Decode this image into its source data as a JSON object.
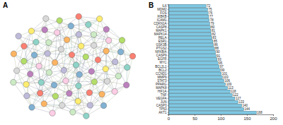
{
  "panel_labels": [
    "A",
    "B"
  ],
  "chart_data": {
    "type": "bar",
    "orientation": "horizontal",
    "data_labels": true,
    "grid": false,
    "color": "#7ec8e3",
    "categories": [
      "IL6",
      "MDM2",
      "FOS",
      "IKBKB",
      "ICAM1",
      "CDKN1A",
      "CASP8",
      "MAPK1",
      "MAPK14",
      "RELA",
      "ESR1",
      "GSK3B",
      "PTGS2",
      "NFKBIA",
      "CASP9",
      "EGFR",
      "MYC",
      "BCL2L1",
      "BCL2",
      "CCND1",
      "MMP9",
      "STAT3",
      "PPARG",
      "MAPK8",
      "HIF1A",
      "TNF",
      "VEGFA",
      "JUN",
      "CASP3",
      "TP53",
      "AKT1"
    ],
    "values": [
      72,
      75,
      76,
      77,
      78,
      79,
      80,
      81,
      82,
      83,
      85,
      86,
      88,
      90,
      91,
      93,
      95,
      97,
      99,
      101,
      103,
      106,
      109,
      113,
      118,
      122,
      127,
      133,
      140,
      144,
      168
    ],
    "xlim": [
      0,
      200
    ],
    "xticks": [
      0,
      50,
      100,
      150,
      200
    ]
  }
}
